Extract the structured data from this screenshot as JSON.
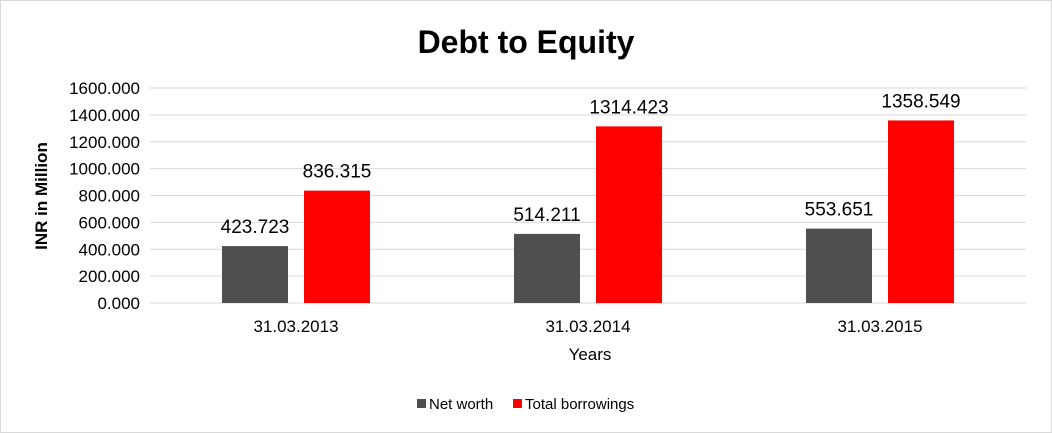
{
  "chart_data": {
    "type": "bar",
    "title": "Debt to Equity",
    "xlabel": "Years",
    "ylabel": "INR in Million",
    "categories": [
      "31.03.2013",
      "31.03.2014",
      "31.03.2015"
    ],
    "ylim": [
      0,
      1600
    ],
    "yticks": [
      "0.000",
      "200.000",
      "400.000",
      "600.000",
      "800.000",
      "1000.000",
      "1200.000",
      "1400.000",
      "1600.000"
    ],
    "grid": true,
    "legend_position": "bottom",
    "series": [
      {
        "name": "Net worth",
        "color": "#4f4f4f",
        "values": [
          423.723,
          514.211,
          553.651
        ],
        "labels": [
          "423.723",
          "514.211",
          "553.651"
        ]
      },
      {
        "name": "Total borrowings",
        "color": "#ff0000",
        "values": [
          836.315,
          1314.423,
          1358.549
        ],
        "labels": [
          "836.315",
          "1314.423",
          "1358.549"
        ]
      }
    ]
  }
}
